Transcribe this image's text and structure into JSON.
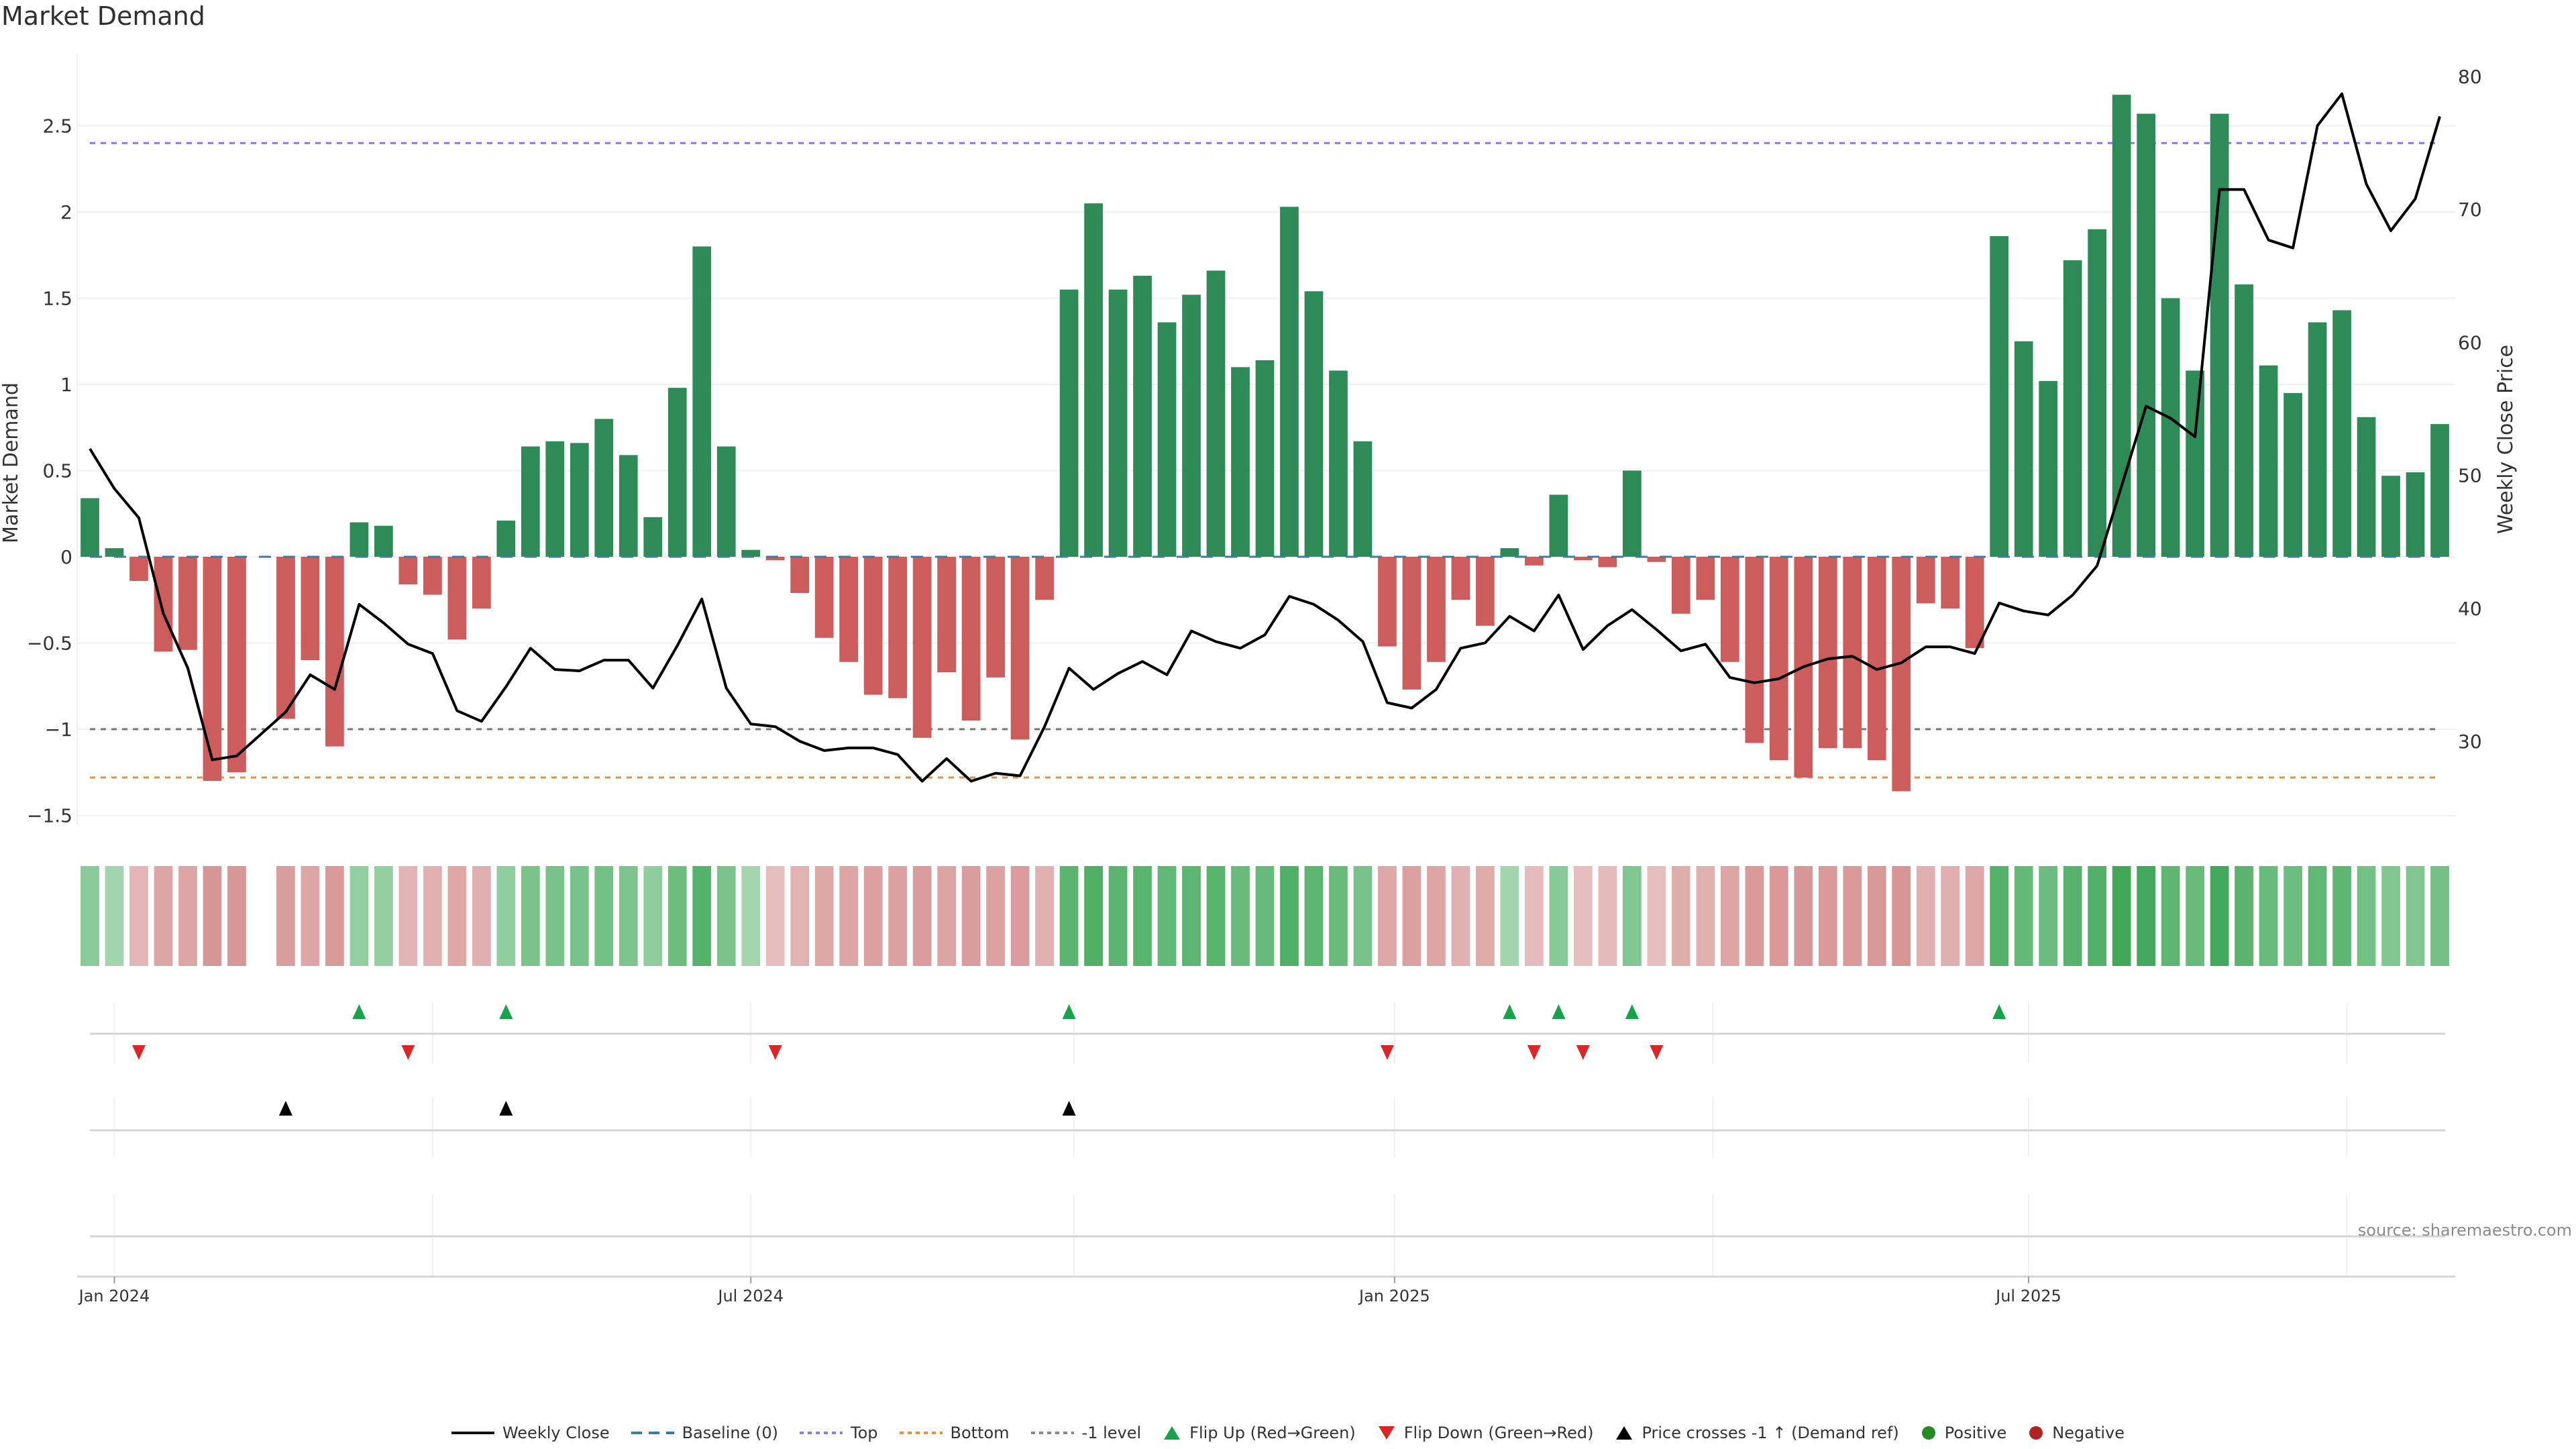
{
  "title": "Market Demand",
  "source": "source: sharemaestro.com",
  "colors": {
    "positive_bar": "#2e8b57",
    "negative_bar": "#cd5c5c",
    "line": "#000000",
    "baseline": "#1f77b4",
    "top": "#7b68ee",
    "bottom": "#ff8c00",
    "minus1": "#555555",
    "flip_up": "#16a34a",
    "flip_down": "#dc2626",
    "price_cross": "#000000",
    "legend_positive": "#228b22",
    "legend_negative": "#b22222"
  },
  "legend": [
    {
      "label": "Weekly Close",
      "icon": "solid-line"
    },
    {
      "label": "Baseline (0)",
      "icon": "dash-line"
    },
    {
      "label": "Top",
      "icon": "dot-line"
    },
    {
      "label": "Bottom",
      "icon": "dot-line"
    },
    {
      "label": "-1 level",
      "icon": "dot-line"
    },
    {
      "label": "Flip Up (Red→Green)",
      "icon": "triangle-up"
    },
    {
      "label": "Flip Down (Green→Red)",
      "icon": "triangle-down"
    },
    {
      "label": "Price crosses -1 ↑ (Demand ref)",
      "icon": "triangle-up"
    },
    {
      "label": "Positive",
      "icon": "circle"
    },
    {
      "label": "Negative",
      "icon": "circle"
    }
  ],
  "chart_data": {
    "type": "bar",
    "title": "Market Demand",
    "ylabel": "Market Demand",
    "y2label": "Weekly Close Price",
    "ylim": [
      -1.7,
      2.9
    ],
    "y2lim": [
      22.5,
      81.5
    ],
    "yticks": [
      {
        "value": 2.5,
        "label": "2.5"
      },
      {
        "value": 2,
        "label": "2"
      },
      {
        "value": 1.5,
        "label": "1.5"
      },
      {
        "value": 1,
        "label": "1"
      },
      {
        "value": 0.5,
        "label": "0.5"
      },
      {
        "value": 0,
        "label": "0"
      },
      {
        "value": -0.5,
        "label": "−0.5"
      },
      {
        "value": -1,
        "label": "−1"
      },
      {
        "value": -1.5,
        "label": "−1.5"
      }
    ],
    "y2ticks": [
      {
        "value": 80,
        "label": "80"
      },
      {
        "value": 70,
        "label": "70"
      },
      {
        "value": 60,
        "label": "60"
      },
      {
        "value": 50,
        "label": "50"
      },
      {
        "value": 40,
        "label": "40"
      },
      {
        "value": 30,
        "label": "30"
      }
    ],
    "xticks": [
      {
        "week": 2,
        "label": "Jan 2024"
      },
      {
        "week": 28,
        "label": "Jul 2024"
      },
      {
        "week": 54.3,
        "label": "Jan 2025"
      },
      {
        "week": 80.2,
        "label": "Jul 2025"
      }
    ],
    "reference_lines": {
      "baseline": 0,
      "top": 2.4,
      "bottom": -1.28,
      "minus1": -1
    },
    "weeks": 97,
    "demand": [
      0.34,
      0.05,
      -0.14,
      -0.55,
      -0.54,
      -1.3,
      -1.25,
      null,
      -0.94,
      -0.6,
      -1.1,
      0.2,
      0.18,
      -0.16,
      -0.22,
      -0.48,
      -0.3,
      0.21,
      0.64,
      0.67,
      0.66,
      0.8,
      0.59,
      0.23,
      0.98,
      1.8,
      0.64,
      0.04,
      -0.02,
      -0.21,
      -0.47,
      -0.61,
      -0.8,
      -0.82,
      -1.05,
      -0.67,
      -0.95,
      -0.7,
      -1.06,
      -0.25,
      1.55,
      2.05,
      1.55,
      1.63,
      1.36,
      1.52,
      1.66,
      1.1,
      1.14,
      2.03,
      1.54,
      1.08,
      0.67,
      -0.52,
      -0.77,
      -0.61,
      -0.25,
      -0.4,
      0.05,
      -0.05,
      0.36,
      -0.02,
      -0.06,
      0.5,
      -0.03,
      -0.33,
      -0.25,
      -0.61,
      -1.08,
      -1.18,
      -1.28,
      -1.11,
      -1.11,
      -1.18,
      -1.36,
      -0.27,
      -0.3,
      -0.53,
      1.86,
      1.25,
      1.02,
      1.72,
      1.9,
      2.68,
      2.57,
      1.5,
      1.08,
      2.57,
      1.58,
      1.11,
      0.95,
      1.36,
      1.43,
      0.81,
      0.47,
      0.49,
      0.77
    ],
    "weekly_close": [
      52.0,
      49.0,
      46.8,
      39.6,
      35.5,
      28.6,
      28.9,
      null,
      32.2,
      35.0,
      33.9,
      40.3,
      38.9,
      37.3,
      36.6,
      32.3,
      31.5,
      34.1,
      37.0,
      35.4,
      35.3,
      36.1,
      36.1,
      34.0,
      37.2,
      40.7,
      34.0,
      31.3,
      31.1,
      30.0,
      29.3,
      29.5,
      29.5,
      29.0,
      27.0,
      28.7,
      27.0,
      27.6,
      27.4,
      31.1,
      35.5,
      33.9,
      35.1,
      36.0,
      35.0,
      38.3,
      37.5,
      37.0,
      38.0,
      40.9,
      40.3,
      39.1,
      37.5,
      32.9,
      32.5,
      33.9,
      37.0,
      37.4,
      39.4,
      38.3,
      41.0,
      36.9,
      38.7,
      39.9,
      38.4,
      36.8,
      37.3,
      34.8,
      34.4,
      34.7,
      35.6,
      36.2,
      36.4,
      35.4,
      35.9,
      37.1,
      37.1,
      36.6,
      40.4,
      39.8,
      39.5,
      41.0,
      43.2,
      49.2,
      55.2,
      54.3,
      52.9,
      71.5,
      71.5,
      67.7,
      67.1,
      76.3,
      78.7,
      71.9,
      68.4,
      70.8,
      77.0
    ],
    "flip_up_weeks": [
      12,
      18,
      41,
      59,
      61,
      64,
      79
    ],
    "flip_down_weeks": [
      3,
      14,
      29,
      54,
      60,
      62,
      65
    ],
    "price_cross_weeks": [
      9,
      18,
      41
    ]
  }
}
